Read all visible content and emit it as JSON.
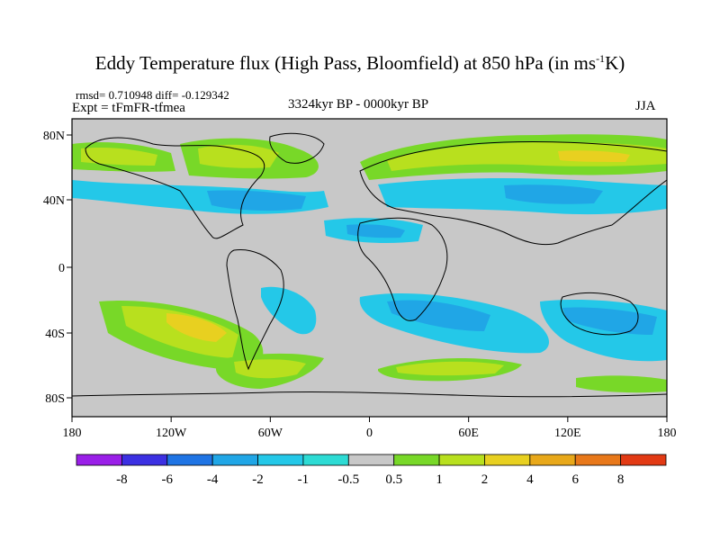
{
  "title_main": "Eddy Temperature flux (High Pass, Bloomfield) at 850 hPa (in ms",
  "title_sup": "-1",
  "title_end": "K)",
  "stats": "rmsd= 0.710948  diff= -0.129342",
  "expt": "Expt = tFmFR-tfmea",
  "period": "3324kyr BP - 0000kyr BP",
  "season": "JJA",
  "lat_ticks": [
    "80N",
    "40N",
    "0",
    "40S",
    "80S"
  ],
  "lon_ticks": [
    "180",
    "120W",
    "60W",
    "0",
    "60E",
    "120E",
    "180"
  ],
  "colorbar_labels": [
    "-8",
    "-6",
    "-4",
    "-2",
    "-1",
    "-0.5",
    "0.5",
    "1",
    "2",
    "4",
    "6",
    "8"
  ],
  "colorbar_colors": [
    "#9a1fe8",
    "#3c30e2",
    "#1f74e4",
    "#20a6e6",
    "#24c8e8",
    "#2ddbd4",
    "#c8c8c8",
    "#78d828",
    "#b8e01e",
    "#e8d020",
    "#e8a81a",
    "#e8781a",
    "#e23a14"
  ],
  "colors": {
    "map_background": "#c8c8c8",
    "coastline": "#000000"
  }
}
